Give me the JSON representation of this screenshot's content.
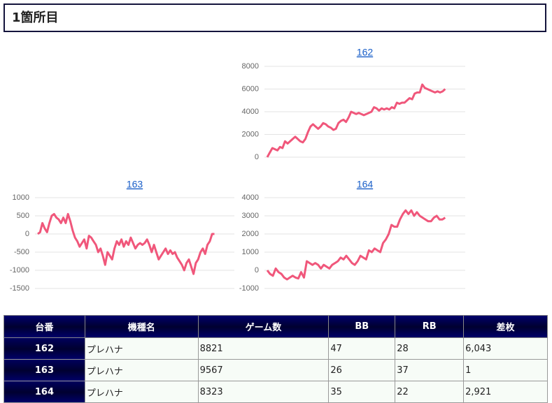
{
  "header": {
    "title": "1箇所目"
  },
  "chart_data": [
    {
      "type": "line",
      "title": "162",
      "color": "#f0577b",
      "grid": true,
      "values": [
        0,
        400,
        800,
        700,
        600,
        900,
        800,
        1400,
        1200,
        1400,
        1600,
        1800,
        1600,
        1400,
        1300,
        1600,
        2200,
        2700,
        2900,
        2700,
        2500,
        2700,
        3000,
        2900,
        2700,
        2600,
        2400,
        2500,
        3000,
        3200,
        3300,
        3100,
        3500,
        4000,
        3900,
        3800,
        3900,
        3800,
        3700,
        3800,
        3900,
        4000,
        4400,
        4300,
        4100,
        4300,
        4200,
        4300,
        4200,
        4400,
        4300,
        4800,
        4700,
        4800,
        4800,
        5000,
        5200,
        5100,
        5600,
        5700,
        5700,
        6400,
        6100,
        6000,
        5900,
        5800,
        5700,
        5800,
        5700,
        5800,
        6000
      ],
      "ylim": [
        0,
        8000
      ],
      "yticks": [
        0,
        2000,
        4000,
        6000,
        8000
      ]
    },
    {
      "type": "line",
      "title": "163",
      "color": "#f0577b",
      "grid": true,
      "values": [
        0,
        50,
        300,
        150,
        50,
        300,
        500,
        550,
        450,
        400,
        300,
        450,
        300,
        550,
        350,
        100,
        -100,
        -200,
        -350,
        -250,
        -150,
        -400,
        -50,
        -100,
        -200,
        -300,
        -500,
        -400,
        -600,
        -850,
        -500,
        -600,
        -700,
        -400,
        -200,
        -300,
        -150,
        -350,
        -200,
        -300,
        -100,
        -250,
        -400,
        -300,
        -250,
        -300,
        -250,
        -150,
        -300,
        -500,
        -300,
        -500,
        -700,
        -600,
        -500,
        -400,
        -550,
        -450,
        -550,
        -500,
        -650,
        -750,
        -850,
        -1000,
        -800,
        -700,
        -900,
        -1100,
        -800,
        -700,
        -500,
        -400,
        -550,
        -300,
        -200,
        0,
        0
      ],
      "ylim": [
        -1500,
        1000
      ],
      "yticks": [
        -1500,
        -1000,
        -500,
        0,
        500,
        1000
      ]
    },
    {
      "type": "line",
      "title": "164",
      "color": "#f0577b",
      "grid": true,
      "values": [
        0,
        -200,
        -300,
        100,
        -100,
        -200,
        -400,
        -500,
        -400,
        -300,
        -400,
        -450,
        -100,
        -400,
        500,
        400,
        300,
        400,
        300,
        100,
        300,
        200,
        100,
        300,
        400,
        500,
        700,
        600,
        800,
        600,
        400,
        300,
        500,
        800,
        700,
        600,
        1100,
        1000,
        1200,
        1100,
        1000,
        1500,
        1700,
        2000,
        2500,
        2400,
        2400,
        2800,
        3100,
        3300,
        3100,
        3300,
        3000,
        3200,
        3000,
        2900,
        2800,
        2700,
        2700,
        2900,
        3000,
        2800,
        2800,
        2900
      ],
      "ylim": [
        -1000,
        4000
      ],
      "yticks": [
        -1000,
        0,
        1000,
        2000,
        3000,
        4000
      ]
    }
  ],
  "table": {
    "columns": [
      "台番",
      "機種名",
      "ゲーム数",
      "BB",
      "RB",
      "差枚"
    ],
    "rows": [
      [
        "162",
        "プレハナ",
        "8821",
        "47",
        "28",
        "6,043"
      ],
      [
        "163",
        "プレハナ",
        "9567",
        "26",
        "37",
        "1"
      ],
      [
        "164",
        "プレハナ",
        "8323",
        "35",
        "22",
        "2,921"
      ]
    ]
  }
}
